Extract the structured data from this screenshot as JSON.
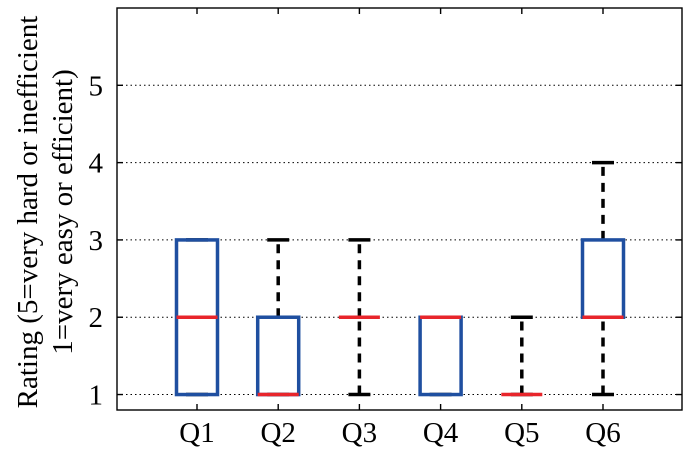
{
  "chart_data": {
    "type": "box",
    "title": "",
    "ylabel_lines": [
      "Rating (5=very hard or inefficient",
      "1=very easy or efficient)"
    ],
    "xlabel": "",
    "ylim": [
      0.8,
      6
    ],
    "y_ticks": [
      1,
      2,
      3,
      4,
      5
    ],
    "grid": "horizontal-dotted",
    "categories": [
      "Q1",
      "Q2",
      "Q3",
      "Q4",
      "Q5",
      "Q6"
    ],
    "boxes": [
      {
        "category": "Q1",
        "min": 1,
        "q1": 1,
        "median": 2,
        "q3": 3,
        "max": 3
      },
      {
        "category": "Q2",
        "min": 1,
        "q1": 1,
        "median": 1,
        "q3": 2,
        "max": 3
      },
      {
        "category": "Q3",
        "min": 1,
        "q1": 2,
        "median": 2,
        "q3": 2,
        "max": 3
      },
      {
        "category": "Q4",
        "min": 1,
        "q1": 1,
        "median": 2,
        "q3": 2,
        "max": 2
      },
      {
        "category": "Q5",
        "min": 1,
        "q1": 1,
        "median": 1,
        "q3": 1,
        "max": 2
      },
      {
        "category": "Q6",
        "min": 1,
        "q1": 2,
        "median": 2,
        "q3": 3,
        "max": 4
      }
    ],
    "colors": {
      "box": "#1f4fa0",
      "median": "#e8252b",
      "whisker": "#000000",
      "grid": "#000000"
    }
  }
}
